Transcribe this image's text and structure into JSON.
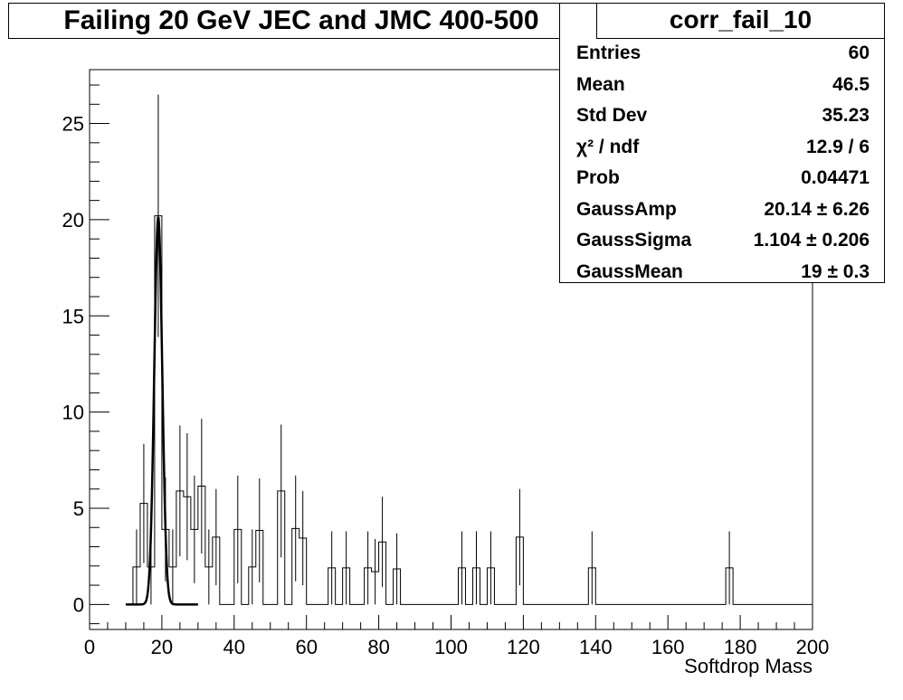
{
  "title": "Failing 20 GeV JEC and JMC 400-500",
  "stats": {
    "name": "corr_fail_10",
    "rows": [
      {
        "key": "Entries",
        "value": "60"
      },
      {
        "key": "Mean",
        "value": "46.5"
      },
      {
        "key": "Std Dev",
        "value": "35.23"
      },
      {
        "key": "χ² / ndf",
        "value": "12.9 / 6"
      },
      {
        "key": "Prob",
        "value": "0.04471"
      },
      {
        "key": "GaussAmp",
        "value": "20.14 ± 6.26"
      },
      {
        "key": "GaussSigma",
        "value": "1.104 ± 0.206"
      },
      {
        "key": "GaussMean",
        "value": "19 ± 0.3"
      }
    ]
  },
  "chart_data": {
    "type": "bar",
    "xlabel": "Softdrop Mass",
    "ylabel": "",
    "xlim": [
      0,
      200
    ],
    "ylim": [
      -1.3,
      27.8
    ],
    "x_ticks": [
      0,
      20,
      40,
      60,
      80,
      100,
      120,
      140,
      160,
      180,
      200
    ],
    "y_ticks": [
      0,
      5,
      10,
      15,
      20,
      25
    ],
    "bin_width": 2,
    "bins": [
      {
        "x0": 12,
        "y": 1.95,
        "err": 1.95
      },
      {
        "x0": 14,
        "y": 5.25,
        "err": 3.1
      },
      {
        "x0": 16,
        "y": 1.95,
        "err": 1.95
      },
      {
        "x0": 18,
        "y": 20.2,
        "err": 6.3
      },
      {
        "x0": 20,
        "y": 3.9,
        "err": 2.7
      },
      {
        "x0": 22,
        "y": 1.95,
        "err": 1.95
      },
      {
        "x0": 24,
        "y": 5.9,
        "err": 3.4
      },
      {
        "x0": 26,
        "y": 5.6,
        "err": 3.3
      },
      {
        "x0": 28,
        "y": 3.9,
        "err": 2.8
      },
      {
        "x0": 30,
        "y": 6.15,
        "err": 3.5
      },
      {
        "x0": 32,
        "y": 1.95,
        "err": 1.95
      },
      {
        "x0": 34,
        "y": 3.5,
        "err": 2.5
      },
      {
        "x0": 40,
        "y": 3.9,
        "err": 2.8
      },
      {
        "x0": 44,
        "y": 1.95,
        "err": 1.95
      },
      {
        "x0": 46,
        "y": 3.85,
        "err": 2.7
      },
      {
        "x0": 52,
        "y": 5.9,
        "err": 3.45
      },
      {
        "x0": 56,
        "y": 3.95,
        "err": 2.75
      },
      {
        "x0": 58,
        "y": 3.45,
        "err": 2.45
      },
      {
        "x0": 66,
        "y": 1.9,
        "err": 1.9
      },
      {
        "x0": 70,
        "y": 1.9,
        "err": 1.9
      },
      {
        "x0": 76,
        "y": 1.9,
        "err": 1.9
      },
      {
        "x0": 78,
        "y": 1.7,
        "err": 1.7
      },
      {
        "x0": 80,
        "y": 3.25,
        "err": 2.35
      },
      {
        "x0": 84,
        "y": 1.85,
        "err": 1.85
      },
      {
        "x0": 102,
        "y": 1.9,
        "err": 1.9
      },
      {
        "x0": 106,
        "y": 1.9,
        "err": 1.9
      },
      {
        "x0": 110,
        "y": 1.9,
        "err": 1.9
      },
      {
        "x0": 118,
        "y": 3.5,
        "err": 2.5
      },
      {
        "x0": 138,
        "y": 1.9,
        "err": 1.9
      },
      {
        "x0": 176,
        "y": 1.9,
        "err": 1.9
      }
    ],
    "fit": {
      "function": "gaus",
      "amp": 20.14,
      "mean": 19,
      "sigma": 1.104,
      "range": [
        10,
        30
      ]
    }
  }
}
